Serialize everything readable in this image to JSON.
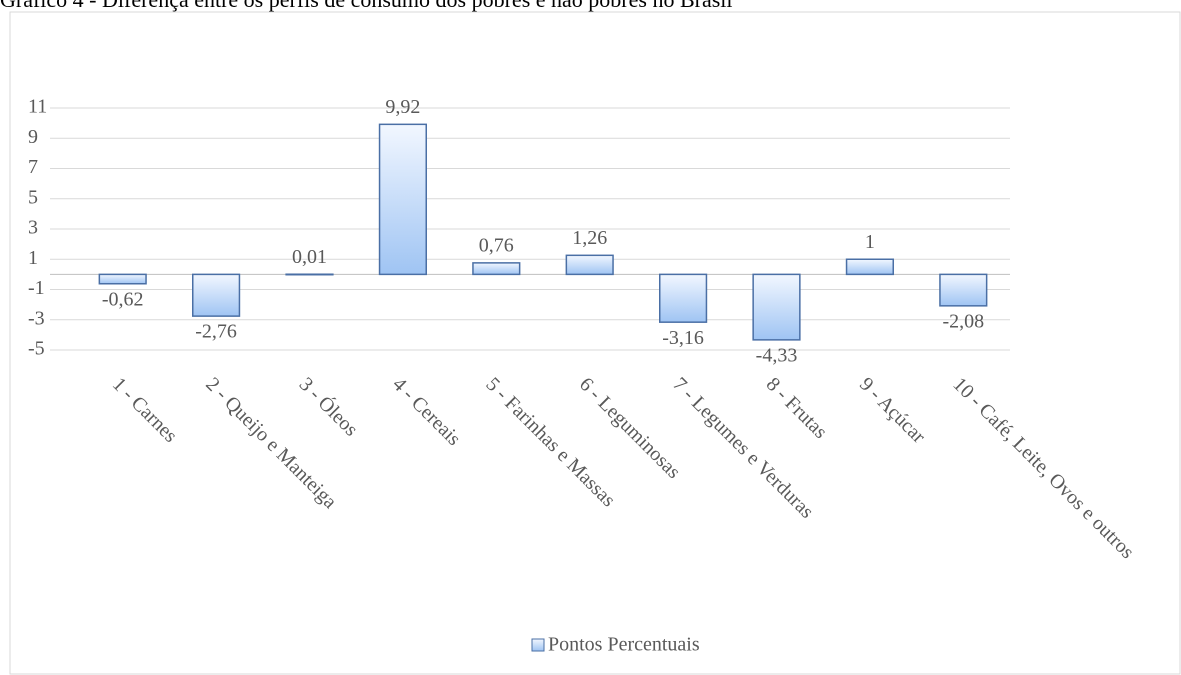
{
  "chart_data": {
    "type": "bar",
    "title": "Gráfico 4 - Diferença entre os perfis de consumo dos pobres e não pobres no Brasil",
    "categories": [
      "1 - Carnes",
      "2 - Queijo e Manteiga",
      "3 - Óleos",
      "4 - Cereais",
      "5 - Farinhas e Massas",
      "6 - Leguminosas",
      "7 - Legumes e Verduras",
      "8 - Frutas",
      "9 - Açúcar",
      "10 - Café, Leite, Ovos e outros"
    ],
    "series": [
      {
        "name": "Pontos Percentuais",
        "color": "#4a6fa5",
        "values": [
          -0.62,
          -2.76,
          0.01,
          9.92,
          0.76,
          1.26,
          -3.16,
          -4.33,
          1,
          -2.08
        ],
        "value_labels": [
          "-0,62",
          "-2,76",
          "0,01",
          "9,92",
          "0,76",
          "1,26",
          "-3,16",
          "-4,33",
          "1",
          "-2,08"
        ]
      }
    ],
    "ylim": [
      -5,
      11
    ],
    "yticks": [
      11,
      9,
      7,
      5,
      3,
      1,
      -1,
      -3,
      -5
    ],
    "grid": true,
    "legend": "bottom"
  }
}
